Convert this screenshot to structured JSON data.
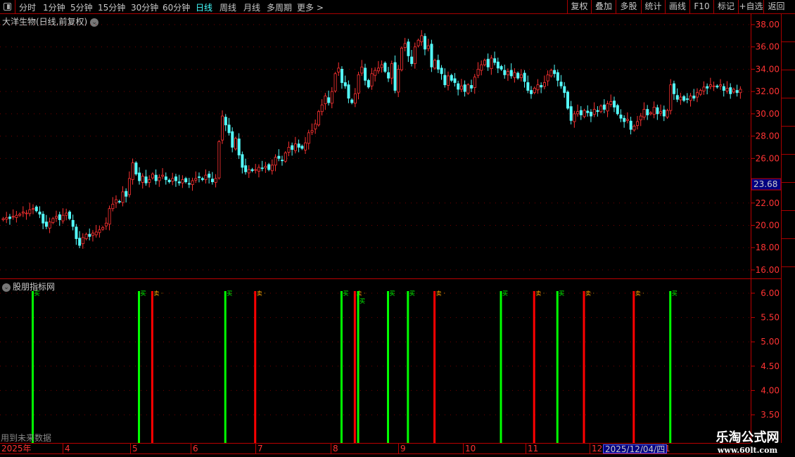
{
  "toolbar": {
    "periods": [
      "分时",
      "1分钟",
      "5分钟",
      "15分钟",
      "30分钟",
      "60分钟",
      "日线",
      "周线",
      "月线",
      "多周期",
      "更多 >"
    ],
    "active": "日线",
    "right_buttons": [
      "复权",
      "叠加",
      "多股",
      "统计",
      "画线",
      "F10",
      "标记",
      "+自选",
      "返回"
    ]
  },
  "stock_title": "大洋生物(日线,前复权)",
  "indicator_title": "股朋指标网",
  "future_note": "用到未来数据",
  "current_price_label": "23.68",
  "date_axis": {
    "labels": [
      "2025年",
      "4",
      "5",
      "6",
      "7",
      "8",
      "9",
      "10",
      "11",
      "12",
      "1"
    ],
    "cursor_date": "2025/12/04/四"
  },
  "watermark": {
    "name": "乐淘公式网",
    "url": "www.60lt.com"
  },
  "colors": {
    "up": "#ff3232",
    "down": "#54fcfc",
    "buy": "#00ff00",
    "sell": "#ff0000",
    "axis": "#ff3333",
    "current_price_bg": "#000080"
  },
  "chart_data": [
    {
      "type": "candlestick",
      "yticks": [
        "38.00",
        "36.00",
        "34.00",
        "32.00",
        "30.00",
        "28.00",
        "26.00",
        "22.00",
        "20.00",
        "18.00",
        "16.00"
      ],
      "ylim": [
        15.5,
        38.5
      ],
      "closes": [
        20.6,
        20.7,
        20.6,
        20.8,
        20.9,
        21.0,
        21.2,
        21.1,
        21.4,
        21.5,
        21.3,
        21.0,
        20.2,
        19.9,
        20.3,
        20.6,
        20.8,
        20.5,
        20.9,
        21.1,
        20.6,
        19.9,
        18.8,
        18.2,
        18.9,
        19.2,
        19.0,
        19.3,
        19.4,
        19.6,
        19.8,
        20.2,
        21.5,
        21.9,
        22.3,
        22.1,
        23.0,
        22.6,
        24.2,
        25.6,
        24.6,
        24.0,
        24.4,
        23.8,
        24.1,
        24.6,
        24.0,
        24.3,
        24.5,
        24.1,
        23.9,
        24.2,
        24.0,
        23.8,
        24.1,
        23.9,
        23.7,
        24.0,
        24.2,
        24.3,
        24.1,
        24.5,
        24.3,
        23.9,
        24.2,
        27.5,
        29.8,
        29.0,
        28.3,
        27.0,
        27.8,
        26.3,
        25.2,
        24.8,
        25.0,
        24.9,
        25.0,
        25.2,
        25.1,
        25.3,
        25.0,
        25.4,
        26.1,
        26.0,
        25.8,
        26.5,
        27.0,
        26.8,
        27.3,
        27.0,
        26.9,
        27.4,
        28.3,
        28.5,
        29.1,
        30.2,
        30.8,
        31.6,
        31.0,
        32.0,
        33.6,
        34.1,
        32.8,
        32.5,
        31.4,
        31.0,
        31.8,
        33.5,
        34.2,
        33.0,
        32.4,
        33.6,
        33.9,
        34.1,
        34.4,
        33.8,
        33.2,
        34.5,
        32.1,
        34.0,
        35.9,
        36.3,
        35.2,
        34.5,
        36.0,
        36.6,
        37.0,
        35.8,
        36.1,
        34.2,
        34.8,
        34.0,
        33.6,
        32.6,
        33.4,
        33.0,
        32.8,
        32.2,
        32.5,
        32.0,
        32.6,
        32.3,
        33.3,
        34.0,
        34.4,
        34.8,
        34.2,
        35.0,
        34.6,
        34.1,
        34.0,
        33.5,
        33.8,
        33.4,
        33.7,
        33.2,
        33.5,
        32.9,
        32.1,
        31.8,
        32.3,
        32.6,
        32.4,
        32.8,
        33.5,
        33.9,
        33.6,
        33.0,
        32.5,
        31.9,
        30.5,
        29.4,
        30.0,
        30.2,
        29.9,
        30.3,
        30.1,
        29.8,
        30.4,
        30.2,
        30.7,
        30.4,
        30.9,
        31.1,
        30.6,
        30.0,
        29.6,
        29.3,
        29.5,
        28.6,
        28.9,
        29.3,
        29.8,
        30.4,
        29.9,
        30.1,
        30.6,
        30.0,
        30.2,
        29.8,
        30.3,
        32.6,
        31.8,
        31.3,
        31.5,
        31.2,
        31.3,
        31.6,
        31.4,
        31.9,
        32.1,
        32.4,
        32.3,
        32.6,
        32.5,
        32.4,
        32.6,
        32.1,
        32.3,
        31.8,
        32.2,
        31.9,
        32.2
      ]
    },
    {
      "type": "signal",
      "title": "股朋指标网",
      "yticks": [
        "6.00",
        "5.50",
        "5.00",
        "4.50",
        "4.00",
        "3.50"
      ],
      "ylim": [
        3.35,
        6.1
      ],
      "labels": {
        "buy": "买",
        "sell": "卖"
      },
      "signals": [
        {
          "i": 9,
          "t": "buy"
        },
        {
          "i": 41,
          "t": "buy"
        },
        {
          "i": 45,
          "t": "sell"
        },
        {
          "i": 67,
          "t": "buy"
        },
        {
          "i": 76,
          "t": "sell"
        },
        {
          "i": 102,
          "t": "buy"
        },
        {
          "i": 106,
          "t": "sell"
        },
        {
          "i": 107,
          "t": "buy"
        },
        {
          "i": 116,
          "t": "buy"
        },
        {
          "i": 122,
          "t": "buy"
        },
        {
          "i": 130,
          "t": "sell"
        },
        {
          "i": 150,
          "t": "buy"
        },
        {
          "i": 160,
          "t": "sell"
        },
        {
          "i": 167,
          "t": "buy"
        },
        {
          "i": 175,
          "t": "sell"
        },
        {
          "i": 190,
          "t": "sell"
        },
        {
          "i": 201,
          "t": "buy"
        }
      ]
    }
  ]
}
